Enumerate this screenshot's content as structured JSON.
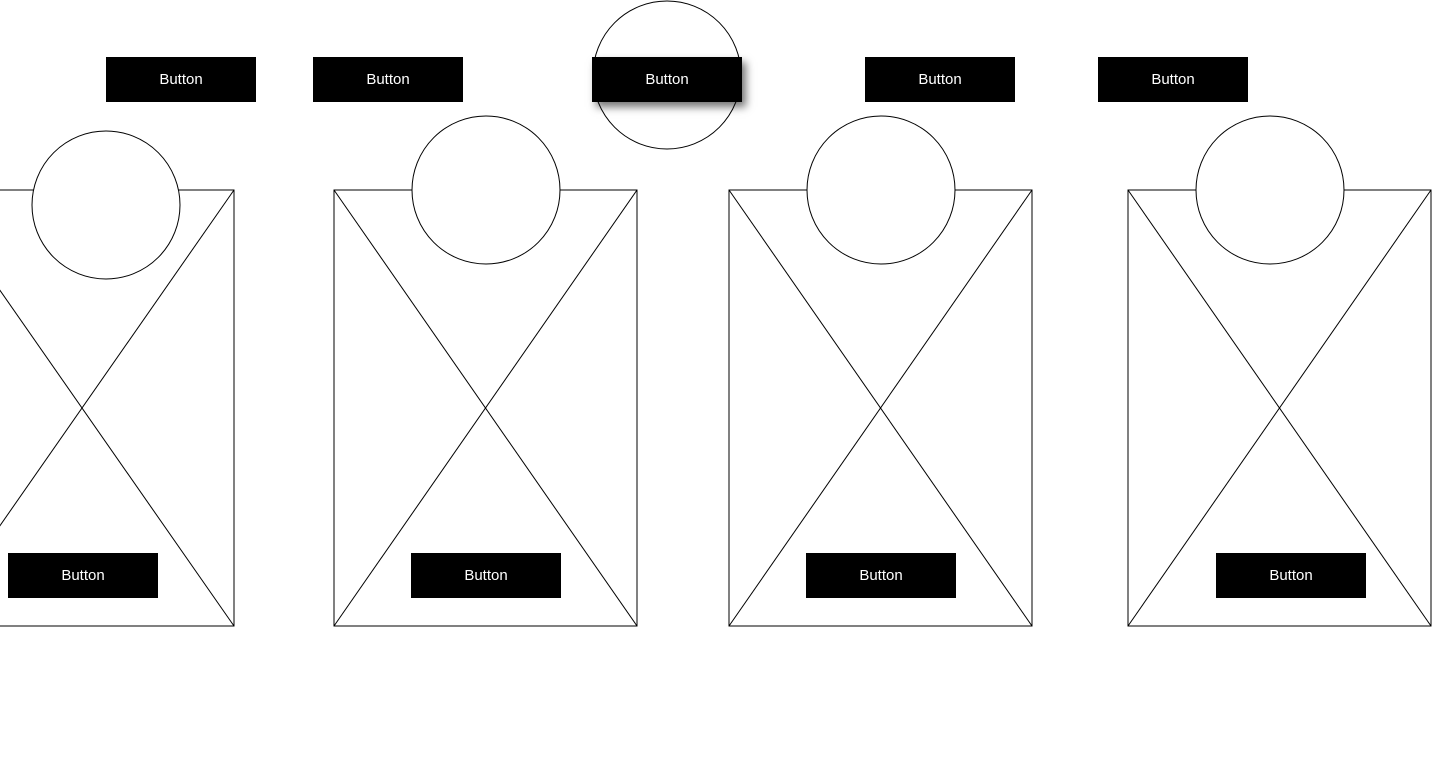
{
  "top_buttons": [
    {
      "label": "Button"
    },
    {
      "label": "Button"
    },
    {
      "label": "Button"
    },
    {
      "label": "Button"
    },
    {
      "label": "Button"
    }
  ],
  "cards": [
    {
      "button_label": "Button"
    },
    {
      "button_label": "Button"
    },
    {
      "button_label": "Button"
    },
    {
      "button_label": "Button"
    }
  ],
  "colors": {
    "background": "#ffffff",
    "button_fill": "#000000",
    "button_text": "#ffffff",
    "wire_stroke": "#000000"
  }
}
